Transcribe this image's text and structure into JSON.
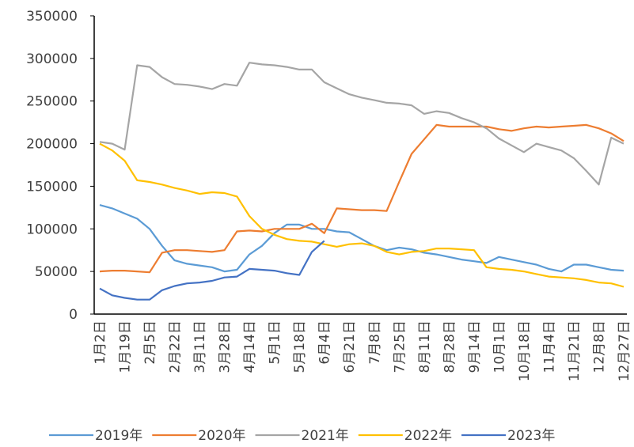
{
  "chart_data": {
    "type": "line",
    "categories": [
      "1月2日",
      null,
      "1月19日",
      null,
      "2月5日",
      null,
      "2月22日",
      null,
      "3月11日",
      null,
      "3月28日",
      null,
      "4月14日",
      null,
      "5月1日",
      null,
      "5月18日",
      null,
      "6月4日",
      null,
      "6月21日",
      null,
      "7月8日",
      null,
      "7月25日",
      null,
      "8月11日",
      null,
      "8月28日",
      null,
      "9月14日",
      null,
      "10月1日",
      null,
      "10月18日",
      null,
      "11月4日",
      null,
      "11月21日",
      null,
      "12月8日",
      null,
      "12月27日"
    ],
    "series": [
      {
        "name": "2019年",
        "color": "#5b9bd5",
        "values": [
          128000,
          124000,
          118000,
          112000,
          100000,
          80000,
          63000,
          59000,
          57000,
          55000,
          50000,
          52000,
          70000,
          80000,
          95000,
          105000,
          105000,
          100000,
          100000,
          97000,
          96000,
          88000,
          80000,
          75000,
          78000,
          76000,
          72000,
          70000,
          67000,
          64000,
          62000,
          60000,
          67000,
          64000,
          61000,
          58000,
          53000,
          50000,
          58000,
          58000,
          55000,
          52000,
          51000
        ]
      },
      {
        "name": "2020年",
        "color": "#ed7d31",
        "values": [
          50000,
          51000,
          51000,
          50000,
          49000,
          72000,
          75000,
          75000,
          74000,
          73000,
          75000,
          97000,
          98000,
          97000,
          100000,
          100000,
          100000,
          106000,
          95000,
          124000,
          123000,
          122000,
          122000,
          121000,
          155000,
          188000,
          205000,
          222000,
          220000,
          220000,
          220000,
          220000,
          217000,
          215000,
          218000,
          220000,
          219000,
          220000,
          221000,
          222000,
          218000,
          212000,
          203000
        ]
      },
      {
        "name": "2021年",
        "color": "#a5a5a5",
        "values": [
          202000,
          200000,
          193000,
          292000,
          290000,
          278000,
          270000,
          269000,
          267000,
          264000,
          270000,
          268000,
          295000,
          293000,
          292000,
          290000,
          287000,
          287000,
          272000,
          265000,
          258000,
          254000,
          251000,
          248000,
          247000,
          245000,
          235000,
          238000,
          236000,
          230000,
          225000,
          218000,
          206000,
          198000,
          190000,
          200000,
          196000,
          192000,
          183000,
          168000,
          152000,
          207000,
          200000
        ]
      },
      {
        "name": "2022年",
        "color": "#ffc000",
        "values": [
          200000,
          192000,
          180000,
          157000,
          155000,
          152000,
          148000,
          145000,
          141000,
          143000,
          142000,
          138000,
          115000,
          100000,
          93000,
          88000,
          86000,
          85000,
          82000,
          79000,
          82000,
          83000,
          80000,
          73000,
          70000,
          73000,
          74000,
          77000,
          77000,
          76000,
          75000,
          55000,
          53000,
          52000,
          50000,
          47000,
          44000,
          43000,
          42000,
          40000,
          37000,
          36000,
          32000
        ]
      },
      {
        "name": "2023年",
        "color": "#4472c4",
        "values": [
          30000,
          22000,
          19000,
          17000,
          17000,
          28000,
          33000,
          36000,
          37000,
          39000,
          43000,
          44000,
          53000,
          52000,
          51000,
          48000,
          46000,
          73000,
          86000,
          null,
          null,
          null,
          null,
          null,
          null,
          null,
          null,
          null,
          null,
          null,
          null,
          null,
          null,
          null,
          null,
          null,
          null,
          null,
          null,
          null,
          null,
          null,
          null
        ]
      }
    ],
    "ylim": [
      0,
      350000
    ],
    "yticks": [
      0,
      50000,
      100000,
      150000,
      200000,
      250000,
      300000,
      350000
    ],
    "legend": "bottom"
  }
}
